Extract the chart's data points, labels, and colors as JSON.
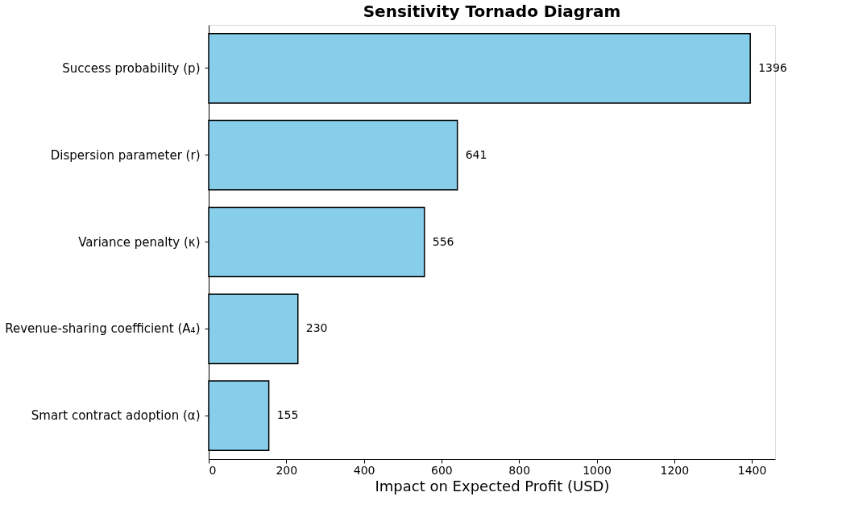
{
  "chart_data": {
    "type": "bar",
    "orientation": "horizontal",
    "title": "Sensitivity Tornado Diagram",
    "xlabel": "Impact on Expected Profit (USD)",
    "categories": [
      "Success probability (p)",
      "Dispersion parameter (r)",
      "Variance penalty (κ)",
      "Revenue-sharing coefficient (A₄)",
      "Smart contract adoption (α)"
    ],
    "values": [
      1396,
      641,
      556,
      230,
      155
    ],
    "color": "#87ceeb",
    "data_labels": true,
    "grid": false,
    "xlim": [
      0,
      1460
    ],
    "xticks": [
      0,
      200,
      400,
      600,
      800,
      1000,
      1200,
      1400
    ]
  }
}
